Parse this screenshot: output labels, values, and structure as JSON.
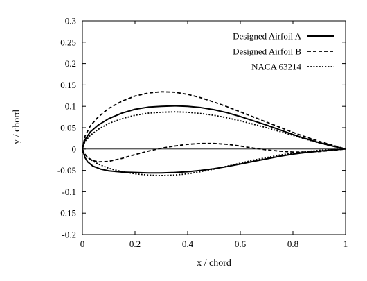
{
  "chart_data": {
    "type": "line",
    "title": "",
    "xlabel": "x / chord",
    "ylabel": "y / chord",
    "xlim": [
      0,
      1
    ],
    "ylim": [
      -0.2,
      0.3
    ],
    "grid": false,
    "legend_position": "top-right",
    "x_ticks": [
      0,
      0.2,
      0.4,
      0.6,
      0.8,
      1
    ],
    "x_tick_labels": [
      "0",
      "0.2",
      "0.4",
      "0.6",
      "0.8",
      "1"
    ],
    "y_ticks": [
      -0.2,
      -0.15,
      -0.1,
      -0.05,
      0,
      0.05,
      0.1,
      0.15,
      0.2,
      0.25,
      0.3
    ],
    "y_tick_labels": [
      "-0.2",
      "-0.15",
      "-0.1",
      "-0.05",
      "0",
      "0.05",
      "0.1",
      "0.15",
      "0.2",
      "0.25",
      "0.3"
    ],
    "reference_line": {
      "y": 0
    },
    "series": [
      {
        "name": "Designed Airfoil A",
        "line_style": "solid",
        "upper": [
          [
            0,
            0
          ],
          [
            0.01,
            0.022
          ],
          [
            0.03,
            0.04
          ],
          [
            0.06,
            0.056
          ],
          [
            0.1,
            0.071
          ],
          [
            0.15,
            0.084
          ],
          [
            0.2,
            0.093
          ],
          [
            0.25,
            0.098
          ],
          [
            0.3,
            0.1
          ],
          [
            0.35,
            0.101
          ],
          [
            0.4,
            0.1
          ],
          [
            0.45,
            0.097
          ],
          [
            0.5,
            0.092
          ],
          [
            0.55,
            0.085
          ],
          [
            0.6,
            0.076
          ],
          [
            0.65,
            0.066
          ],
          [
            0.7,
            0.056
          ],
          [
            0.75,
            0.045
          ],
          [
            0.8,
            0.034
          ],
          [
            0.85,
            0.024
          ],
          [
            0.9,
            0.015
          ],
          [
            0.95,
            0.007
          ],
          [
            1.0,
            0
          ]
        ],
        "lower": [
          [
            0,
            0
          ],
          [
            0.01,
            -0.02
          ],
          [
            0.02,
            -0.03
          ],
          [
            0.04,
            -0.04
          ],
          [
            0.07,
            -0.047
          ],
          [
            0.1,
            -0.051
          ],
          [
            0.15,
            -0.054
          ],
          [
            0.2,
            -0.055
          ],
          [
            0.25,
            -0.056
          ],
          [
            0.3,
            -0.056
          ],
          [
            0.35,
            -0.055
          ],
          [
            0.4,
            -0.053
          ],
          [
            0.45,
            -0.05
          ],
          [
            0.5,
            -0.046
          ],
          [
            0.55,
            -0.041
          ],
          [
            0.6,
            -0.035
          ],
          [
            0.65,
            -0.029
          ],
          [
            0.7,
            -0.023
          ],
          [
            0.75,
            -0.017
          ],
          [
            0.8,
            -0.012
          ],
          [
            0.85,
            -0.008
          ],
          [
            0.9,
            -0.005
          ],
          [
            0.95,
            -0.002
          ],
          [
            1.0,
            0
          ]
        ]
      },
      {
        "name": "Designed Airfoil B",
        "line_style": "dashed",
        "upper": [
          [
            0,
            0
          ],
          [
            0.01,
            0.03
          ],
          [
            0.03,
            0.054
          ],
          [
            0.06,
            0.075
          ],
          [
            0.1,
            0.095
          ],
          [
            0.15,
            0.112
          ],
          [
            0.2,
            0.124
          ],
          [
            0.25,
            0.131
          ],
          [
            0.3,
            0.134
          ],
          [
            0.35,
            0.133
          ],
          [
            0.4,
            0.128
          ],
          [
            0.45,
            0.12
          ],
          [
            0.5,
            0.11
          ],
          [
            0.55,
            0.099
          ],
          [
            0.6,
            0.087
          ],
          [
            0.65,
            0.075
          ],
          [
            0.7,
            0.063
          ],
          [
            0.75,
            0.051
          ],
          [
            0.8,
            0.039
          ],
          [
            0.85,
            0.028
          ],
          [
            0.9,
            0.018
          ],
          [
            0.95,
            0.009
          ],
          [
            1.0,
            0
          ]
        ],
        "lower": [
          [
            0,
            0
          ],
          [
            0.01,
            -0.012
          ],
          [
            0.02,
            -0.02
          ],
          [
            0.04,
            -0.027
          ],
          [
            0.06,
            -0.03
          ],
          [
            0.1,
            -0.029
          ],
          [
            0.15,
            -0.022
          ],
          [
            0.2,
            -0.013
          ],
          [
            0.25,
            -0.005
          ],
          [
            0.3,
            0.002
          ],
          [
            0.35,
            0.007
          ],
          [
            0.4,
            0.011
          ],
          [
            0.45,
            0.013
          ],
          [
            0.5,
            0.013
          ],
          [
            0.55,
            0.011
          ],
          [
            0.6,
            0.007
          ],
          [
            0.65,
            0.002
          ],
          [
            0.7,
            -0.002
          ],
          [
            0.75,
            -0.005
          ],
          [
            0.8,
            -0.007
          ],
          [
            0.85,
            -0.007
          ],
          [
            0.9,
            -0.006
          ],
          [
            0.95,
            -0.003
          ],
          [
            1.0,
            0
          ]
        ]
      },
      {
        "name": "NACA 63214",
        "line_style": "dotted",
        "upper": [
          [
            0,
            0
          ],
          [
            0.01,
            0.018
          ],
          [
            0.03,
            0.032
          ],
          [
            0.06,
            0.046
          ],
          [
            0.1,
            0.06
          ],
          [
            0.15,
            0.071
          ],
          [
            0.2,
            0.079
          ],
          [
            0.25,
            0.084
          ],
          [
            0.3,
            0.086
          ],
          [
            0.35,
            0.087
          ],
          [
            0.4,
            0.086
          ],
          [
            0.45,
            0.083
          ],
          [
            0.5,
            0.079
          ],
          [
            0.55,
            0.073
          ],
          [
            0.6,
            0.066
          ],
          [
            0.65,
            0.058
          ],
          [
            0.7,
            0.05
          ],
          [
            0.75,
            0.041
          ],
          [
            0.8,
            0.032
          ],
          [
            0.85,
            0.023
          ],
          [
            0.9,
            0.014
          ],
          [
            0.95,
            0.007
          ],
          [
            1.0,
            0
          ]
        ],
        "lower": [
          [
            0,
            0
          ],
          [
            0.01,
            -0.014
          ],
          [
            0.02,
            -0.02
          ],
          [
            0.04,
            -0.028
          ],
          [
            0.06,
            -0.035
          ],
          [
            0.1,
            -0.045
          ],
          [
            0.15,
            -0.053
          ],
          [
            0.2,
            -0.058
          ],
          [
            0.25,
            -0.061
          ],
          [
            0.3,
            -0.062
          ],
          [
            0.35,
            -0.061
          ],
          [
            0.4,
            -0.058
          ],
          [
            0.45,
            -0.053
          ],
          [
            0.5,
            -0.047
          ],
          [
            0.55,
            -0.04
          ],
          [
            0.6,
            -0.033
          ],
          [
            0.65,
            -0.026
          ],
          [
            0.7,
            -0.02
          ],
          [
            0.75,
            -0.014
          ],
          [
            0.8,
            -0.01
          ],
          [
            0.85,
            -0.006
          ],
          [
            0.9,
            -0.003
          ],
          [
            0.95,
            -0.001
          ],
          [
            1.0,
            0
          ]
        ]
      }
    ]
  }
}
